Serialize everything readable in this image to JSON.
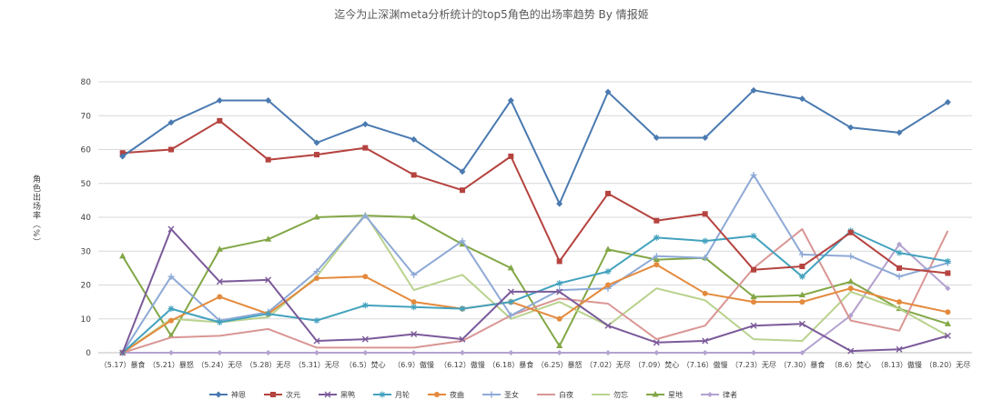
{
  "chart_data": {
    "type": "line",
    "title": "迄今为止深渊meta分析统计的top5角色的出场率趋势 By 情报姬",
    "xlabel": "",
    "ylabel": "角色出场率（%）",
    "ylim": [
      0,
      80
    ],
    "yticks": [
      0,
      10,
      20,
      30,
      40,
      50,
      60,
      70,
      80
    ],
    "grid": true,
    "legend_position": "bottom",
    "categories": [
      "（5.17）暴食",
      "（5.21）暴怒",
      "（5.24）无尽",
      "（5.28）无尽",
      "（5.31）无尽",
      "（6.5）焚心",
      "（6.9）傲慢",
      "（6.12）傲慢",
      "（6.18）暴食",
      "（6.25）暴怒",
      "（7.02）无尽",
      "（7.09）焚心",
      "（7.16）傲慢",
      "（7.23）无尽",
      "（7.30）暴食",
      "（8.6）焚心",
      "（8.13）傲慢",
      "（8.20）无尽"
    ],
    "series": [
      {
        "name": "神恩",
        "color": "#4a7ab0",
        "marker": "diamond",
        "values": [
          58,
          68,
          74.5,
          74.5,
          62,
          67.5,
          63,
          53.5,
          74.5,
          44,
          77,
          63.5,
          63.5,
          77.5,
          75,
          66.5,
          65,
          74
        ]
      },
      {
        "name": "次元",
        "color": "#b5433f",
        "marker": "square",
        "values": [
          59,
          60,
          68.5,
          57,
          58.5,
          60.5,
          52.5,
          48,
          58,
          27,
          47,
          39,
          41,
          24.5,
          25.5,
          35.5,
          25,
          23.5
        ]
      },
      {
        "name": "黑鸭",
        "color": "#7b5a9a",
        "marker": "x",
        "values": [
          0,
          36.5,
          21,
          21.5,
          3.5,
          4,
          5.5,
          4,
          18,
          18,
          8,
          3,
          3.5,
          8,
          8.5,
          0.5,
          1,
          5
        ]
      },
      {
        "name": "月轮",
        "color": "#43a2be",
        "marker": "star",
        "values": [
          0,
          13,
          9,
          11.5,
          9.5,
          14,
          13.5,
          13,
          15,
          20.5,
          24,
          34,
          33,
          34.5,
          22.5,
          36,
          29.5,
          27
        ]
      },
      {
        "name": "夜曲",
        "color": "#e48a3d",
        "marker": "circle",
        "values": [
          0,
          9.5,
          16.5,
          11.5,
          22,
          22.5,
          15,
          13,
          15,
          10,
          20,
          26,
          17.5,
          15,
          15,
          19,
          15,
          12
        ]
      },
      {
        "name": "圣女",
        "color": "#8ea9d6",
        "marker": "plus",
        "values": [
          0,
          22.5,
          9.5,
          12,
          24,
          40.5,
          23,
          33,
          11,
          18.5,
          19,
          28.5,
          28,
          52.5,
          29,
          28.5,
          22.5,
          26.5
        ]
      },
      {
        "name": "白夜",
        "color": "#d99694",
        "marker": "none",
        "values": [
          0,
          4.5,
          5,
          7,
          1.5,
          1.5,
          1.5,
          3.5,
          11,
          16,
          14.5,
          4,
          8,
          25,
          36.5,
          9.5,
          6.5,
          36
        ]
      },
      {
        "name": "勿忘",
        "color": "#b9d28e",
        "marker": "none",
        "values": [
          0,
          10,
          9,
          10.5,
          22.5,
          41,
          18.5,
          23,
          10,
          15,
          8,
          19,
          15.5,
          4,
          3.5,
          18,
          13,
          5
        ]
      },
      {
        "name": "星地",
        "color": "#82a746",
        "marker": "triangle",
        "values": [
          28.5,
          5,
          30.5,
          33.5,
          40,
          40.5,
          40,
          32,
          25,
          2,
          30.5,
          27.5,
          28,
          16.5,
          17,
          21,
          13,
          8.5
        ]
      },
      {
        "name": "律者",
        "color": "#b3a2cf",
        "marker": "diamond-small",
        "values": [
          0,
          0,
          0,
          0,
          0,
          0,
          0,
          0,
          0,
          0,
          0,
          0,
          0,
          0,
          0,
          11,
          32,
          19
        ]
      }
    ]
  }
}
